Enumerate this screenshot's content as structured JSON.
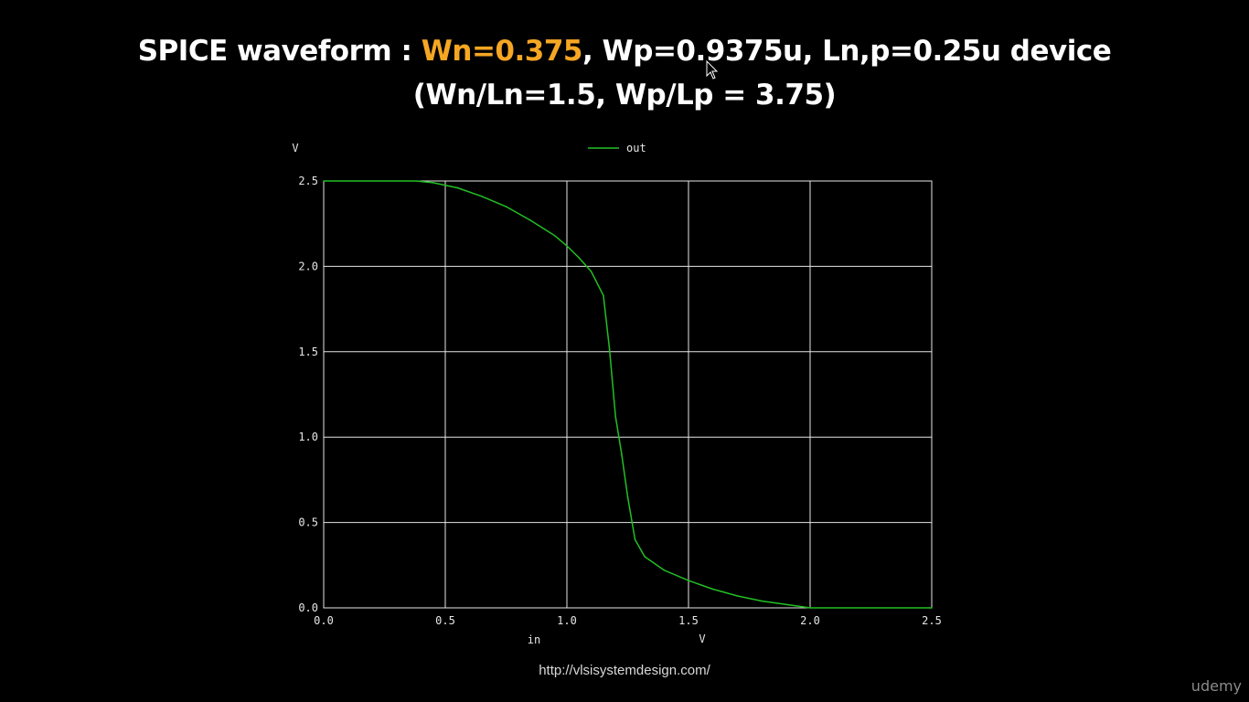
{
  "slide": {
    "title_line1_part1": "SPICE waveform : ",
    "title_line1_highlight": "Wn=0.375",
    "title_line1_part2": ", Wp=0.9375u, Ln,p=0.25u device",
    "title_line2": "(Wn/Ln=1.5, Wp/Lp = 3.75)",
    "highlight_color": "#f5a623",
    "source_url": "http://vlsisystemdesign.com/",
    "watermark": "udemy"
  },
  "chart_data": {
    "type": "line",
    "title": "",
    "xlabel": "in",
    "x_unit": "V",
    "ylabel": "",
    "y_unit": "V",
    "xlim": [
      0,
      2.5
    ],
    "ylim": [
      0,
      2.5
    ],
    "x_ticks": [
      "0.0",
      "0.5",
      "1.0",
      "1.5",
      "2.0",
      "2.5"
    ],
    "y_ticks": [
      "0.0",
      "0.5",
      "1.0",
      "1.5",
      "2.0",
      "2.5"
    ],
    "grid": true,
    "legend_position": "top-center",
    "series": [
      {
        "name": "out",
        "color": "#22c022",
        "x": [
          0.0,
          0.38,
          0.45,
          0.55,
          0.65,
          0.75,
          0.85,
          0.95,
          1.0,
          1.05,
          1.1,
          1.15,
          1.175,
          1.2,
          1.225,
          1.25,
          1.28,
          1.32,
          1.4,
          1.5,
          1.6,
          1.7,
          1.8,
          1.9,
          2.0,
          2.5
        ],
        "y": [
          2.5,
          2.5,
          2.49,
          2.46,
          2.41,
          2.35,
          2.27,
          2.18,
          2.12,
          2.05,
          1.97,
          1.83,
          1.52,
          1.12,
          0.9,
          0.65,
          0.4,
          0.3,
          0.22,
          0.16,
          0.11,
          0.07,
          0.04,
          0.02,
          0.0,
          0.0
        ]
      }
    ]
  }
}
